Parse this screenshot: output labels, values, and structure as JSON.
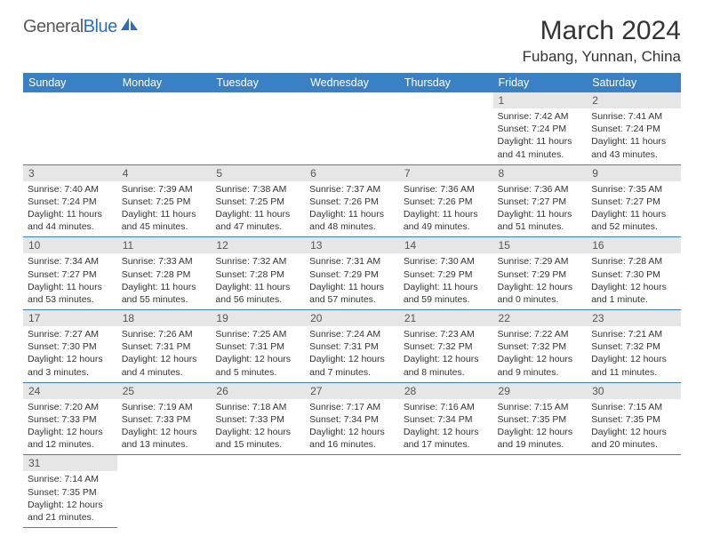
{
  "logo": {
    "part1": "General",
    "part2": "Blue"
  },
  "title": "March 2024",
  "location": "Fubang, Yunnan, China",
  "weekdays": [
    "Sunday",
    "Monday",
    "Tuesday",
    "Wednesday",
    "Thursday",
    "Friday",
    "Saturday"
  ],
  "header_bg": "#3a80c4",
  "daynum_bg": "#e6e6e6",
  "border_color": "#3a80c4",
  "days": {
    "1": {
      "sunrise": "7:42 AM",
      "sunset": "7:24 PM",
      "dl_h": 11,
      "dl_m": 41
    },
    "2": {
      "sunrise": "7:41 AM",
      "sunset": "7:24 PM",
      "dl_h": 11,
      "dl_m": 43
    },
    "3": {
      "sunrise": "7:40 AM",
      "sunset": "7:24 PM",
      "dl_h": 11,
      "dl_m": 44
    },
    "4": {
      "sunrise": "7:39 AM",
      "sunset": "7:25 PM",
      "dl_h": 11,
      "dl_m": 45
    },
    "5": {
      "sunrise": "7:38 AM",
      "sunset": "7:25 PM",
      "dl_h": 11,
      "dl_m": 47
    },
    "6": {
      "sunrise": "7:37 AM",
      "sunset": "7:26 PM",
      "dl_h": 11,
      "dl_m": 48
    },
    "7": {
      "sunrise": "7:36 AM",
      "sunset": "7:26 PM",
      "dl_h": 11,
      "dl_m": 49
    },
    "8": {
      "sunrise": "7:36 AM",
      "sunset": "7:27 PM",
      "dl_h": 11,
      "dl_m": 51
    },
    "9": {
      "sunrise": "7:35 AM",
      "sunset": "7:27 PM",
      "dl_h": 11,
      "dl_m": 52
    },
    "10": {
      "sunrise": "7:34 AM",
      "sunset": "7:27 PM",
      "dl_h": 11,
      "dl_m": 53
    },
    "11": {
      "sunrise": "7:33 AM",
      "sunset": "7:28 PM",
      "dl_h": 11,
      "dl_m": 55
    },
    "12": {
      "sunrise": "7:32 AM",
      "sunset": "7:28 PM",
      "dl_h": 11,
      "dl_m": 56
    },
    "13": {
      "sunrise": "7:31 AM",
      "sunset": "7:29 PM",
      "dl_h": 11,
      "dl_m": 57
    },
    "14": {
      "sunrise": "7:30 AM",
      "sunset": "7:29 PM",
      "dl_h": 11,
      "dl_m": 59
    },
    "15": {
      "sunrise": "7:29 AM",
      "sunset": "7:29 PM",
      "dl_h": 12,
      "dl_m": 0
    },
    "16": {
      "sunrise": "7:28 AM",
      "sunset": "7:30 PM",
      "dl_h": 12,
      "dl_m": 1
    },
    "17": {
      "sunrise": "7:27 AM",
      "sunset": "7:30 PM",
      "dl_h": 12,
      "dl_m": 3
    },
    "18": {
      "sunrise": "7:26 AM",
      "sunset": "7:31 PM",
      "dl_h": 12,
      "dl_m": 4
    },
    "19": {
      "sunrise": "7:25 AM",
      "sunset": "7:31 PM",
      "dl_h": 12,
      "dl_m": 5
    },
    "20": {
      "sunrise": "7:24 AM",
      "sunset": "7:31 PM",
      "dl_h": 12,
      "dl_m": 7
    },
    "21": {
      "sunrise": "7:23 AM",
      "sunset": "7:32 PM",
      "dl_h": 12,
      "dl_m": 8
    },
    "22": {
      "sunrise": "7:22 AM",
      "sunset": "7:32 PM",
      "dl_h": 12,
      "dl_m": 9
    },
    "23": {
      "sunrise": "7:21 AM",
      "sunset": "7:32 PM",
      "dl_h": 12,
      "dl_m": 11
    },
    "24": {
      "sunrise": "7:20 AM",
      "sunset": "7:33 PM",
      "dl_h": 12,
      "dl_m": 12
    },
    "25": {
      "sunrise": "7:19 AM",
      "sunset": "7:33 PM",
      "dl_h": 12,
      "dl_m": 13
    },
    "26": {
      "sunrise": "7:18 AM",
      "sunset": "7:33 PM",
      "dl_h": 12,
      "dl_m": 15
    },
    "27": {
      "sunrise": "7:17 AM",
      "sunset": "7:34 PM",
      "dl_h": 12,
      "dl_m": 16
    },
    "28": {
      "sunrise": "7:16 AM",
      "sunset": "7:34 PM",
      "dl_h": 12,
      "dl_m": 17
    },
    "29": {
      "sunrise": "7:15 AM",
      "sunset": "7:35 PM",
      "dl_h": 12,
      "dl_m": 19
    },
    "30": {
      "sunrise": "7:15 AM",
      "sunset": "7:35 PM",
      "dl_h": 12,
      "dl_m": 20
    },
    "31": {
      "sunrise": "7:14 AM",
      "sunset": "7:35 PM",
      "dl_h": 12,
      "dl_m": 21
    }
  },
  "grid": [
    [
      0,
      0,
      0,
      0,
      0,
      1,
      2
    ],
    [
      3,
      4,
      5,
      6,
      7,
      8,
      9
    ],
    [
      10,
      11,
      12,
      13,
      14,
      15,
      16
    ],
    [
      17,
      18,
      19,
      20,
      21,
      22,
      23
    ],
    [
      24,
      25,
      26,
      27,
      28,
      29,
      30
    ],
    [
      31,
      0,
      0,
      0,
      0,
      0,
      0
    ]
  ]
}
